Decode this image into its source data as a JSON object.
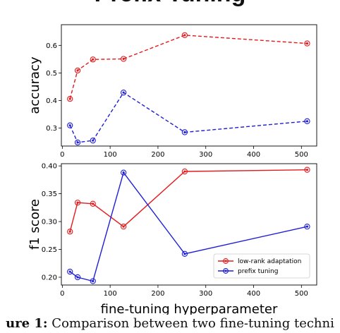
{
  "heading": "Prefix Tuning",
  "caption": {
    "label": "ure 1:",
    "text": " Comparison between two fine-tuning techni"
  },
  "colors": {
    "lora": "#e41a1c",
    "prefix": "#1f1fd8"
  },
  "chart_data": [
    {
      "type": "line",
      "title": "",
      "xlabel": "",
      "ylabel": "accuracy",
      "xlim": [
        -2,
        532
      ],
      "ylim": [
        0.235,
        0.675
      ],
      "xticks": [
        0,
        100,
        200,
        300,
        400,
        500
      ],
      "xtick_labels": [
        "0",
        "100",
        "200",
        "300",
        "400",
        "500"
      ],
      "yticks": [
        0.3,
        0.4,
        0.5,
        0.6
      ],
      "ytick_labels": [
        "0.3",
        "0.4",
        "0.5",
        "0.6"
      ],
      "grid": false,
      "series": [
        {
          "key": "lora",
          "style": "dashed",
          "x": [
            16,
            32,
            64,
            128,
            256,
            512
          ],
          "y": [
            0.406,
            0.509,
            0.549,
            0.551,
            0.637,
            0.607
          ]
        },
        {
          "key": "prefix",
          "style": "dashed",
          "x": [
            16,
            32,
            64,
            128,
            256,
            512
          ],
          "y": [
            0.31,
            0.248,
            0.255,
            0.429,
            0.285,
            0.325
          ]
        }
      ]
    },
    {
      "type": "line",
      "title": "",
      "xlabel": "fine-tuning hyperparameter",
      "ylabel": "f1 score",
      "xlim": [
        -2,
        532
      ],
      "ylim": [
        0.186,
        0.404
      ],
      "xticks": [
        0,
        100,
        200,
        300,
        400,
        500
      ],
      "xtick_labels": [
        "0",
        "100",
        "200",
        "300",
        "400",
        "500"
      ],
      "yticks": [
        0.2,
        0.25,
        0.3,
        0.35,
        0.4
      ],
      "ytick_labels": [
        "0.20",
        "0.25",
        "0.30",
        "0.35",
        "0.40"
      ],
      "grid": false,
      "legend": "bottom-right",
      "series": [
        {
          "key": "lora",
          "name": "low-rank adaptation",
          "style": "solid",
          "x": [
            16,
            32,
            64,
            128,
            256,
            512
          ],
          "y": [
            0.282,
            0.334,
            0.332,
            0.291,
            0.39,
            0.393
          ]
        },
        {
          "key": "prefix",
          "name": "prefix tuning",
          "style": "solid",
          "x": [
            16,
            32,
            64,
            128,
            256,
            512
          ],
          "y": [
            0.21,
            0.2,
            0.193,
            0.388,
            0.242,
            0.291
          ]
        }
      ]
    }
  ]
}
